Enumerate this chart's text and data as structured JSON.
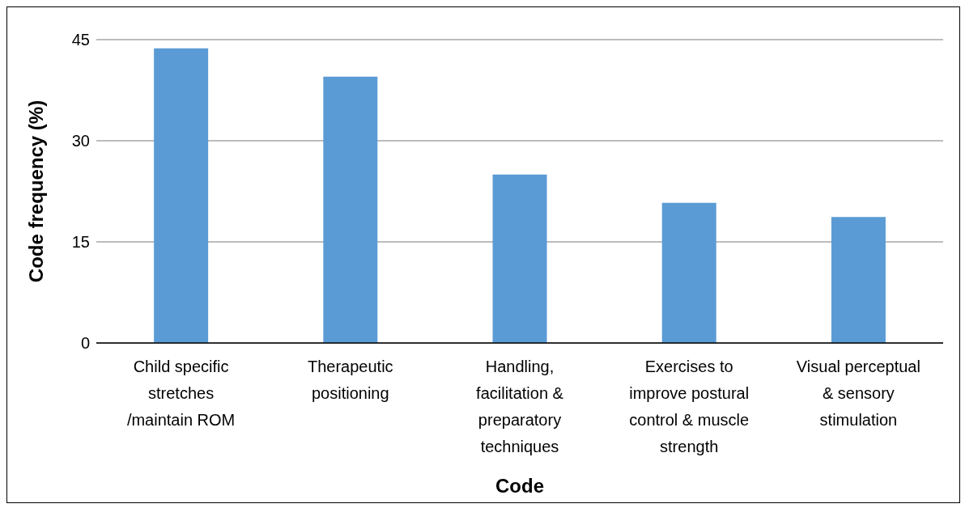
{
  "chart_data": {
    "type": "bar",
    "xlabel": "Code",
    "ylabel": "Code  frequency (%)",
    "categories": [
      "Child specific stretches /maintain ROM",
      "Therapeutic positioning",
      "Handling, facilitation & preparatory techniques",
      "Exercises to improve postural control & muscle strength",
      "Visual perceptual & sensory stimulation"
    ],
    "values": [
      43.7,
      39.5,
      25,
      20.8,
      18.7
    ],
    "color": "#5b9bd5",
    "ylim": [
      0,
      45
    ],
    "yticks": [
      0,
      15,
      30,
      45
    ],
    "grid": "y"
  }
}
